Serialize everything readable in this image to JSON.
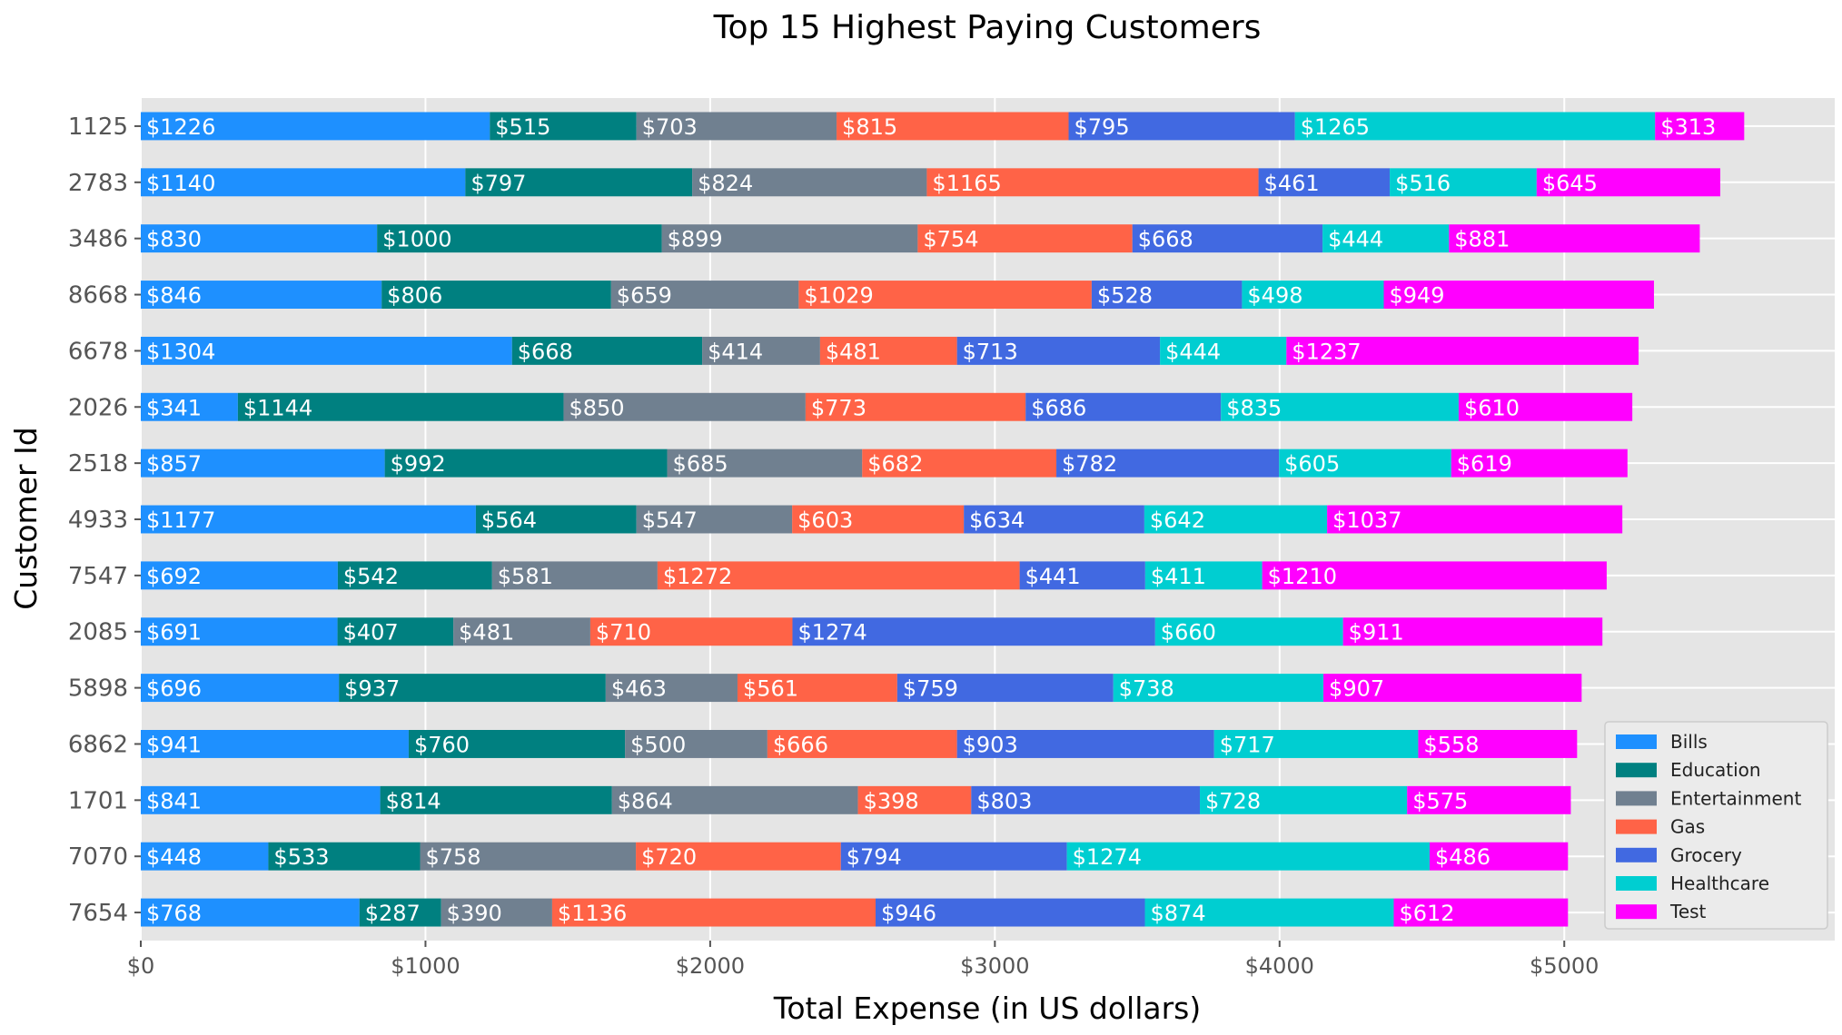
{
  "chart_data": {
    "type": "bar",
    "orientation": "horizontal",
    "stacked": true,
    "title": "Top 15 Highest Paying Customers",
    "xlabel": "Total Expense (in US dollars)",
    "ylabel": "Customer Id",
    "xlim": [
      0,
      5950
    ],
    "xticks": [
      0,
      1000,
      2000,
      3000,
      4000,
      5000
    ],
    "xtick_labels": [
      "$0",
      "$1000",
      "$2000",
      "$3000",
      "$4000",
      "$5000"
    ],
    "grid": true,
    "legend_position": "bottom-right",
    "categories": [
      "1125",
      "2783",
      "3486",
      "8668",
      "6678",
      "2026",
      "2518",
      "4933",
      "7547",
      "2085",
      "5898",
      "6862",
      "1701",
      "7070",
      "7654"
    ],
    "series": [
      {
        "name": "Bills",
        "color": "#1e90ff",
        "values": [
          1226,
          1140,
          830,
          846,
          1304,
          341,
          857,
          1177,
          692,
          691,
          696,
          941,
          841,
          448,
          768
        ]
      },
      {
        "name": "Education",
        "color": "#008080",
        "values": [
          515,
          797,
          1000,
          806,
          668,
          1144,
          992,
          564,
          542,
          407,
          937,
          760,
          814,
          533,
          287
        ]
      },
      {
        "name": "Entertainment",
        "color": "#708090",
        "values": [
          703,
          824,
          899,
          659,
          414,
          850,
          685,
          547,
          581,
          481,
          463,
          500,
          864,
          758,
          390
        ]
      },
      {
        "name": "Gas",
        "color": "#ff6347",
        "values": [
          815,
          1165,
          754,
          1029,
          481,
          773,
          682,
          603,
          1272,
          710,
          561,
          666,
          398,
          720,
          1136
        ]
      },
      {
        "name": "Grocery",
        "color": "#4169e1",
        "values": [
          795,
          461,
          668,
          528,
          713,
          686,
          782,
          634,
          441,
          1274,
          759,
          903,
          803,
          794,
          946
        ]
      },
      {
        "name": "Healthcare",
        "color": "#00ced1",
        "values": [
          1265,
          516,
          444,
          498,
          444,
          835,
          605,
          642,
          411,
          660,
          738,
          717,
          728,
          1274,
          874
        ]
      },
      {
        "name": "Test",
        "color": "#ff00ff",
        "values": [
          313,
          645,
          881,
          949,
          1237,
          610,
          619,
          1037,
          1210,
          911,
          907,
          558,
          575,
          486,
          612
        ]
      }
    ],
    "value_label_prefix": "$"
  },
  "colors": {
    "plot_background": "#e5e5e5",
    "grid": "#ffffff"
  }
}
